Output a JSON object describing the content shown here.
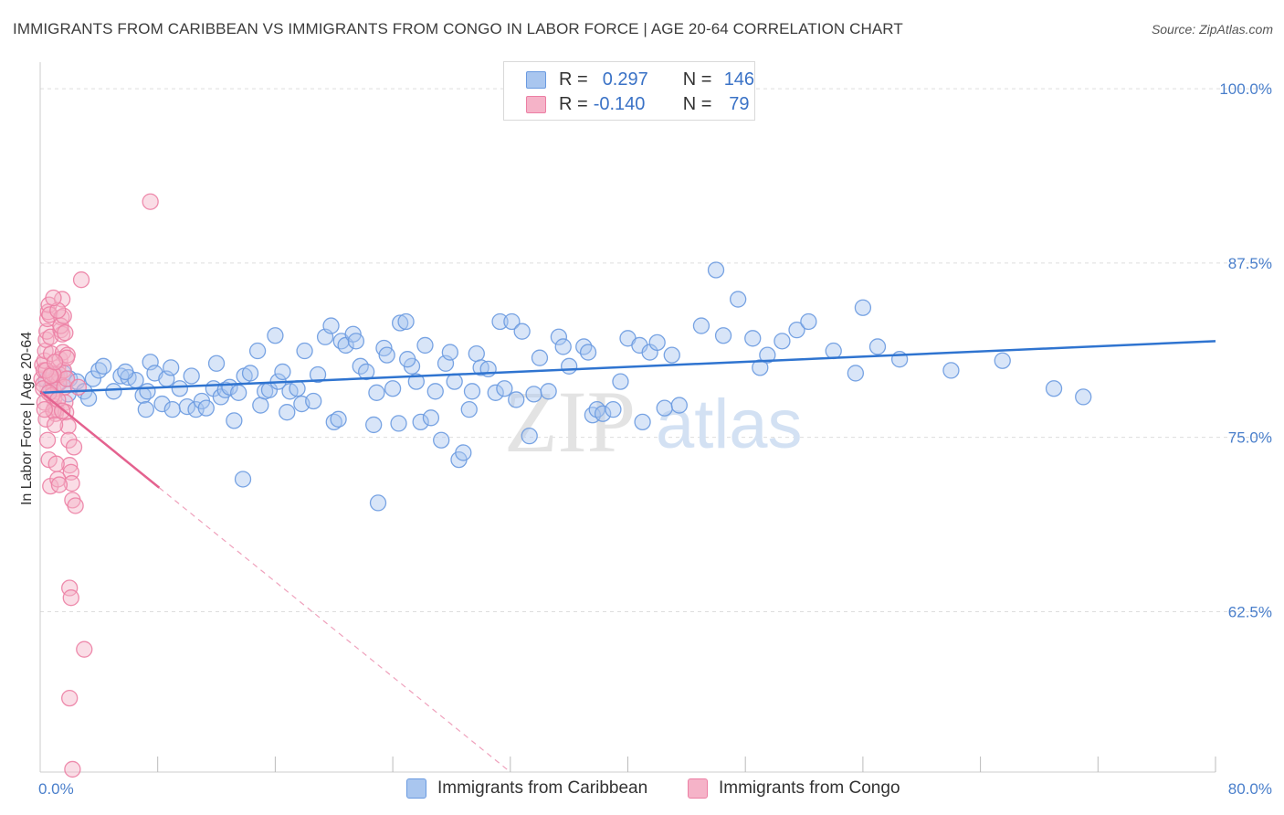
{
  "title": "IMMIGRANTS FROM CARIBBEAN VS IMMIGRANTS FROM CONGO IN LABOR FORCE | AGE 20-64 CORRELATION CHART",
  "source": "Source: ZipAtlas.com",
  "watermark": {
    "zip": "ZIP",
    "atlas": "atlas"
  },
  "legend": {
    "rows": [
      {
        "r_label": "R =",
        "r_value": "0.297",
        "n_label": "N =",
        "n_value": "146"
      },
      {
        "r_label": "R =",
        "r_value": "-0.140",
        "n_label": "N =",
        "n_value": "79"
      }
    ]
  },
  "colors": {
    "blue_fill": "#a9c6ef",
    "blue_stroke": "#6a9ae0",
    "blue_line": "#2f74d0",
    "pink_fill": "#f5b3c8",
    "pink_stroke": "#ec7fa4",
    "pink_line": "#e4628f",
    "tick_text": "#4a7fcb",
    "grid": "#dddddd"
  },
  "chart_data": {
    "type": "scatter",
    "title": "IMMIGRANTS FROM CARIBBEAN VS IMMIGRANTS FROM CONGO IN LABOR FORCE | AGE 20-64 CORRELATION CHART",
    "xlabel": "",
    "ylabel": "In Labor Force | Age 20-64",
    "xlim": [
      0,
      80
    ],
    "ylim": [
      51,
      101.25
    ],
    "x_tick_labels": [
      "0.0%",
      "80.0%"
    ],
    "y_ticks": [
      100.0,
      87.5,
      75.0,
      62.5
    ],
    "y_tick_labels": [
      "100.0%",
      "87.5%",
      "75.0%",
      "62.5%"
    ],
    "legend_placement": "bottom-center",
    "series": [
      {
        "name": "Immigrants from Caribbean",
        "color": "#6a9ae0",
        "R": 0.297,
        "N": 146,
        "trend": {
          "x0": 0,
          "y0": 78.2,
          "x1": 80,
          "y1": 81.9,
          "dashed_from": null
        },
        "points": [
          [
            0.4,
            79.1
          ],
          [
            0.7,
            78.5
          ],
          [
            1.1,
            79.4
          ],
          [
            1.3,
            78.9
          ],
          [
            1.6,
            79.6
          ],
          [
            2.0,
            79.2
          ],
          [
            2.5,
            79.0
          ],
          [
            3.0,
            78.3
          ],
          [
            3.3,
            77.8
          ],
          [
            3.6,
            79.2
          ],
          [
            4.0,
            79.8
          ],
          [
            4.3,
            80.1
          ],
          [
            5.0,
            78.3
          ],
          [
            5.5,
            79.4
          ],
          [
            6.0,
            79.3
          ],
          [
            6.5,
            79.1
          ],
          [
            7.0,
            78.0
          ],
          [
            7.2,
            77.0
          ],
          [
            7.5,
            80.4
          ],
          [
            7.8,
            79.6
          ],
          [
            8.3,
            77.4
          ],
          [
            8.6,
            79.2
          ],
          [
            8.9,
            80.0
          ],
          [
            9.0,
            77.0
          ],
          [
            9.5,
            78.5
          ],
          [
            10.0,
            77.2
          ],
          [
            10.3,
            79.4
          ],
          [
            10.6,
            77.0
          ],
          [
            11.0,
            77.6
          ],
          [
            11.3,
            77.1
          ],
          [
            11.8,
            78.5
          ],
          [
            12.0,
            80.3
          ],
          [
            12.3,
            77.9
          ],
          [
            12.6,
            78.4
          ],
          [
            12.9,
            78.6
          ],
          [
            13.2,
            76.2
          ],
          [
            13.5,
            78.2
          ],
          [
            13.9,
            79.4
          ],
          [
            14.3,
            79.6
          ],
          [
            14.8,
            81.2
          ],
          [
            15.0,
            77.3
          ],
          [
            15.3,
            78.3
          ],
          [
            15.6,
            78.4
          ],
          [
            16.2,
            79.0
          ],
          [
            16.5,
            79.7
          ],
          [
            16.8,
            76.8
          ],
          [
            17.0,
            78.3
          ],
          [
            17.5,
            78.5
          ],
          [
            17.8,
            77.4
          ],
          [
            18.0,
            81.2
          ],
          [
            18.6,
            77.6
          ],
          [
            18.9,
            79.5
          ],
          [
            19.4,
            82.2
          ],
          [
            19.8,
            83.0
          ],
          [
            20.0,
            76.1
          ],
          [
            20.3,
            76.3
          ],
          [
            20.5,
            81.9
          ],
          [
            20.8,
            81.6
          ],
          [
            21.3,
            82.4
          ],
          [
            21.5,
            81.9
          ],
          [
            21.8,
            80.1
          ],
          [
            22.2,
            79.7
          ],
          [
            22.7,
            75.9
          ],
          [
            22.9,
            78.2
          ],
          [
            23.4,
            81.4
          ],
          [
            23.6,
            80.9
          ],
          [
            24.0,
            78.5
          ],
          [
            24.4,
            76.0
          ],
          [
            24.5,
            83.2
          ],
          [
            24.9,
            83.3
          ],
          [
            25.3,
            80.1
          ],
          [
            25.6,
            79.0
          ],
          [
            25.9,
            76.1
          ],
          [
            26.2,
            81.6
          ],
          [
            26.6,
            76.4
          ],
          [
            26.9,
            78.3
          ],
          [
            27.3,
            74.8
          ],
          [
            27.6,
            80.3
          ],
          [
            27.9,
            81.1
          ],
          [
            28.2,
            79.0
          ],
          [
            28.5,
            73.4
          ],
          [
            28.8,
            73.9
          ],
          [
            29.2,
            77.0
          ],
          [
            29.4,
            78.3
          ],
          [
            29.7,
            81.0
          ],
          [
            30.0,
            80.0
          ],
          [
            30.5,
            79.9
          ],
          [
            31.0,
            78.2
          ],
          [
            31.3,
            83.3
          ],
          [
            31.6,
            78.5
          ],
          [
            32.1,
            83.3
          ],
          [
            32.4,
            77.7
          ],
          [
            32.8,
            82.6
          ],
          [
            33.3,
            75.1
          ],
          [
            33.6,
            78.1
          ],
          [
            34.0,
            80.7
          ],
          [
            34.6,
            78.3
          ],
          [
            35.3,
            82.2
          ],
          [
            35.6,
            81.5
          ],
          [
            36.0,
            80.1
          ],
          [
            37.0,
            81.5
          ],
          [
            37.3,
            81.1
          ],
          [
            37.6,
            76.6
          ],
          [
            37.9,
            77.0
          ],
          [
            38.3,
            76.7
          ],
          [
            39.0,
            77.0
          ],
          [
            39.5,
            79.0
          ],
          [
            40.0,
            82.1
          ],
          [
            40.8,
            81.6
          ],
          [
            41.0,
            76.1
          ],
          [
            41.5,
            81.1
          ],
          [
            42.0,
            81.8
          ],
          [
            42.5,
            77.1
          ],
          [
            43.0,
            80.9
          ],
          [
            43.5,
            77.3
          ],
          [
            45.0,
            83.0
          ],
          [
            46.0,
            87.0
          ],
          [
            46.5,
            82.3
          ],
          [
            47.5,
            84.9
          ],
          [
            48.5,
            82.1
          ],
          [
            49.0,
            80.0
          ],
          [
            49.5,
            80.9
          ],
          [
            50.5,
            81.9
          ],
          [
            51.5,
            82.7
          ],
          [
            52.3,
            83.3
          ],
          [
            54.0,
            81.2
          ],
          [
            55.5,
            79.6
          ],
          [
            56.0,
            84.3
          ],
          [
            57.0,
            81.5
          ],
          [
            58.5,
            80.6
          ],
          [
            62.0,
            79.8
          ],
          [
            65.5,
            80.5
          ],
          [
            69.0,
            78.5
          ],
          [
            71.0,
            77.9
          ],
          [
            13.8,
            72.0
          ],
          [
            23.0,
            70.3
          ],
          [
            7.3,
            78.3
          ],
          [
            16.0,
            82.3
          ],
          [
            25.0,
            80.6
          ],
          [
            1.9,
            78.1
          ],
          [
            5.8,
            79.7
          ]
        ]
      },
      {
        "name": "Immigrants from Congo",
        "color": "#ec7fa4",
        "R": -0.14,
        "N": 79,
        "trend": {
          "x0": 0,
          "y0": 78.3,
          "x1": 32,
          "y1": 51.0,
          "dashed_from": 8.1
        },
        "points": [
          [
            0.1,
            79.2
          ],
          [
            0.15,
            80.2
          ],
          [
            0.2,
            78.8
          ],
          [
            0.25,
            79.8
          ],
          [
            0.3,
            80.5
          ],
          [
            0.35,
            81.2
          ],
          [
            0.4,
            82.0
          ],
          [
            0.45,
            82.6
          ],
          [
            0.5,
            83.5
          ],
          [
            0.55,
            84.0
          ],
          [
            0.6,
            84.5
          ],
          [
            0.65,
            83.8
          ],
          [
            0.7,
            82.2
          ],
          [
            0.75,
            81.0
          ],
          [
            0.8,
            79.6
          ],
          [
            0.85,
            79.0
          ],
          [
            0.9,
            78.4
          ],
          [
            0.95,
            77.8
          ],
          [
            1.0,
            77.2
          ],
          [
            1.05,
            76.7
          ],
          [
            1.1,
            77.0
          ],
          [
            1.15,
            79.3
          ],
          [
            1.2,
            80.0
          ],
          [
            1.25,
            78.9
          ],
          [
            1.3,
            79.5
          ],
          [
            1.35,
            80.6
          ],
          [
            1.4,
            82.7
          ],
          [
            1.45,
            83.6
          ],
          [
            1.5,
            82.4
          ],
          [
            1.55,
            81.1
          ],
          [
            1.6,
            79.8
          ],
          [
            1.65,
            78.6
          ],
          [
            1.7,
            77.5
          ],
          [
            1.75,
            76.8
          ],
          [
            1.8,
            79.2
          ],
          [
            1.85,
            80.9
          ],
          [
            1.9,
            75.8
          ],
          [
            1.95,
            74.8
          ],
          [
            2.0,
            73.0
          ],
          [
            2.1,
            72.5
          ],
          [
            2.15,
            71.7
          ],
          [
            2.2,
            70.5
          ],
          [
            2.3,
            74.3
          ],
          [
            2.4,
            70.1
          ],
          [
            0.2,
            78.5
          ],
          [
            0.3,
            77.5
          ],
          [
            0.4,
            76.3
          ],
          [
            0.5,
            74.8
          ],
          [
            0.6,
            73.4
          ],
          [
            0.7,
            71.5
          ],
          [
            0.8,
            78.0
          ],
          [
            0.9,
            76.9
          ],
          [
            1.0,
            75.9
          ],
          [
            1.1,
            73.1
          ],
          [
            1.2,
            72.0
          ],
          [
            1.3,
            71.6
          ],
          [
            1.4,
            83.0
          ],
          [
            1.5,
            84.9
          ],
          [
            1.6,
            83.7
          ],
          [
            1.7,
            82.5
          ],
          [
            0.3,
            77.0
          ],
          [
            0.6,
            78.2
          ],
          [
            0.9,
            79.5
          ],
          [
            1.2,
            77.7
          ],
          [
            1.5,
            76.9
          ],
          [
            1.8,
            80.7
          ],
          [
            2.0,
            64.2
          ],
          [
            2.1,
            63.5
          ],
          [
            2.8,
            86.3
          ],
          [
            3.0,
            59.8
          ],
          [
            7.5,
            91.9
          ],
          [
            2.0,
            56.3
          ],
          [
            1.2,
            84.1
          ],
          [
            0.9,
            85.0
          ],
          [
            0.4,
            79.8
          ],
          [
            0.7,
            79.4
          ],
          [
            1.0,
            80.4
          ],
          [
            2.6,
            78.6
          ],
          [
            2.2,
            51.2
          ]
        ]
      }
    ]
  },
  "bottom_legend": {
    "items": [
      {
        "label": "Immigrants from Caribbean"
      },
      {
        "label": "Immigrants from Congo"
      }
    ]
  }
}
